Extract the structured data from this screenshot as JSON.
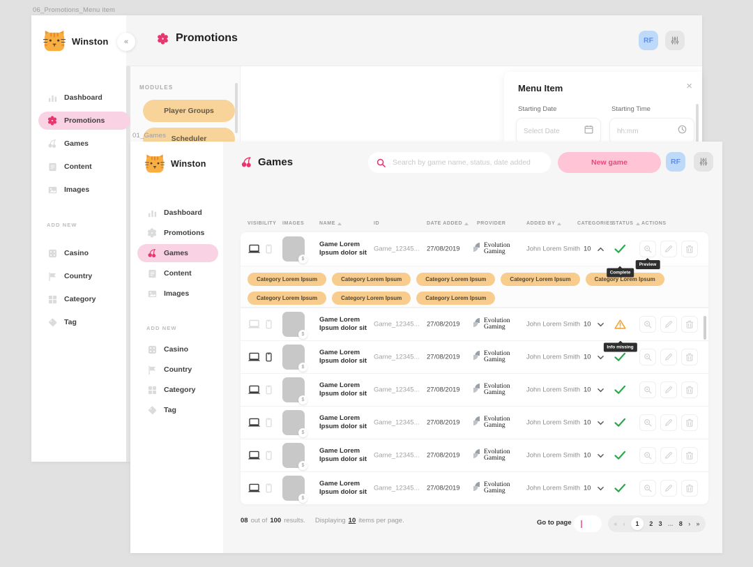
{
  "frames": {
    "promotions": {
      "window_label": "06_Promotions_Menu item",
      "brand": "Winston",
      "page_title": "Promotions",
      "avatar_initials": "RF",
      "sidebar": {
        "items": [
          {
            "label": "Dashboard",
            "icon": "dashboard",
            "active": false
          },
          {
            "label": "Promotions",
            "icon": "promotions",
            "active": true
          },
          {
            "label": "Games",
            "icon": "games",
            "active": false
          },
          {
            "label": "Content",
            "icon": "content",
            "active": false
          },
          {
            "label": "Images",
            "icon": "images",
            "active": false
          }
        ],
        "section_label": "ADD NEW",
        "add_new_items": [
          {
            "label": "Casino",
            "icon": "casino"
          },
          {
            "label": "Country",
            "icon": "country"
          },
          {
            "label": "Category",
            "icon": "category"
          },
          {
            "label": "Tag",
            "icon": "tag"
          }
        ]
      },
      "modules_panel": {
        "heading": "MODULES",
        "buttons": [
          "Player Groups",
          "Scheduler"
        ]
      },
      "menu_item_panel": {
        "title": "Menu Item",
        "fields": [
          {
            "label": "Starting Date",
            "placeholder": "Select Date",
            "icon": "calendar"
          },
          {
            "label": "Starting Time",
            "placeholder": "hh:mm",
            "icon": "clock"
          }
        ]
      }
    },
    "games": {
      "window_label": "01_Games",
      "brand": "Winston",
      "page_title": "Games",
      "search_placeholder": "Search by game name, status, date added",
      "new_game_button": "New game",
      "avatar_initials": "RF",
      "sidebar": {
        "items": [
          {
            "label": "Dashboard",
            "icon": "dashboard",
            "active": false
          },
          {
            "label": "Promotions",
            "icon": "promotions",
            "active": false
          },
          {
            "label": "Games",
            "icon": "games",
            "active": true
          },
          {
            "label": "Content",
            "icon": "content",
            "active": false
          },
          {
            "label": "Images",
            "icon": "images",
            "active": false
          }
        ],
        "section_label": "ADD NEW",
        "add_new_items": [
          {
            "label": "Casino",
            "icon": "casino"
          },
          {
            "label": "Country",
            "icon": "country"
          },
          {
            "label": "Category",
            "icon": "category"
          },
          {
            "label": "Tag",
            "icon": "tag"
          }
        ]
      },
      "table": {
        "columns": [
          {
            "label": "VISIBILITY",
            "sorted": false
          },
          {
            "label": "IMAGES",
            "sorted": false
          },
          {
            "label": "NAME",
            "sorted": true
          },
          {
            "label": "ID",
            "sorted": false
          },
          {
            "label": "DATE ADDED",
            "sorted": true
          },
          {
            "label": "PROVIDER",
            "sorted": false
          },
          {
            "label": "ADDED BY",
            "sorted": true
          },
          {
            "label": "CATEGORIES",
            "sorted": false
          },
          {
            "label": "STATUS",
            "sorted": true
          },
          {
            "label": "ACTIONS",
            "sorted": false
          }
        ],
        "rows": [
          {
            "name_line1": "Game Lorem",
            "name_line2": "Ipsum dolor sit",
            "id": "Game_12345...",
            "date_added": "27/08/2019",
            "provider_line1": "Evolution",
            "provider_line2": "Gaming",
            "added_by": "John Lorem Smith",
            "categories_count": "10",
            "expanded": true,
            "status": "complete",
            "status_tooltip": "Complete",
            "action_tooltip": "Preview",
            "visibility": {
              "desktop": true,
              "mobile": false
            }
          },
          {
            "name_line1": "Game Lorem",
            "name_line2": "Ipsum dolor sit",
            "id": "Game_12345...",
            "date_added": "27/08/2019",
            "provider_line1": "Evolution",
            "provider_line2": "Gaming",
            "added_by": "John Lorem Smith",
            "categories_count": "10",
            "expanded": false,
            "status": "warning",
            "status_tooltip": "Info missing",
            "visibility": {
              "desktop": false,
              "mobile": false
            }
          },
          {
            "name_line1": "Game Lorem",
            "name_line2": "Ipsum dolor sit",
            "id": "Game_12345...",
            "date_added": "27/08/2019",
            "provider_line1": "Evolution",
            "provider_line2": "Gaming",
            "added_by": "John Lorem Smith",
            "categories_count": "10",
            "expanded": false,
            "status": "complete",
            "visibility": {
              "desktop": true,
              "mobile": true
            }
          },
          {
            "name_line1": "Game Lorem",
            "name_line2": "Ipsum dolor sit",
            "id": "Game_12345...",
            "date_added": "27/08/2019",
            "provider_line1": "Evolution",
            "provider_line2": "Gaming",
            "added_by": "John Lorem Smith",
            "categories_count": "10",
            "expanded": false,
            "status": "complete",
            "visibility": {
              "desktop": true,
              "mobile": false
            }
          },
          {
            "name_line1": "Game Lorem",
            "name_line2": "Ipsum dolor sit",
            "id": "Game_12345...",
            "date_added": "27/08/2019",
            "provider_line1": "Evolution",
            "provider_line2": "Gaming",
            "added_by": "John Lorem Smith",
            "categories_count": "10",
            "expanded": false,
            "status": "complete",
            "visibility": {
              "desktop": true,
              "mobile": false
            }
          },
          {
            "name_line1": "Game Lorem",
            "name_line2": "Ipsum dolor sit",
            "id": "Game_12345...",
            "date_added": "27/08/2019",
            "provider_line1": "Evolution",
            "provider_line2": "Gaming",
            "added_by": "John Lorem Smith",
            "categories_count": "10",
            "expanded": false,
            "status": "complete",
            "visibility": {
              "desktop": true,
              "mobile": false
            }
          },
          {
            "name_line1": "Game Lorem",
            "name_line2": "Ipsum dolor sit",
            "id": "Game_12345...",
            "date_added": "27/08/2019",
            "provider_line1": "Evolution",
            "provider_line2": "Gaming",
            "added_by": "John Lorem Smith",
            "categories_count": "10",
            "expanded": false,
            "status": "complete",
            "visibility": {
              "desktop": true,
              "mobile": false
            }
          }
        ],
        "expanded_categories": [
          "Category Lorem Ipsum",
          "Category Lorem Ipsum",
          "Category Lorem Ipsum",
          "Category Lorem Ipsum",
          "Category Lorem Ipsum",
          "Category Lorem Ipsum",
          "Category Lorem Ipsum",
          "Category Lorem Ipsum"
        ],
        "image_badge": "$"
      },
      "footer": {
        "count": "08",
        "out_of_label": "out of",
        "total": "100",
        "results_label": "results.",
        "displaying_label": "Displaying",
        "items_per_page": "10",
        "items_label": "items per page.",
        "goto_label": "Go to page",
        "pagination": [
          {
            "label": "«",
            "state": "disabled"
          },
          {
            "label": "‹",
            "state": "disabled"
          },
          {
            "label": "1",
            "state": "current"
          },
          {
            "label": "2",
            "state": "normal"
          },
          {
            "label": "3",
            "state": "normal"
          },
          {
            "label": "...",
            "state": "ellipsis"
          },
          {
            "label": "8",
            "state": "normal"
          },
          {
            "label": "›",
            "state": "nav"
          },
          {
            "label": "»",
            "state": "nav"
          }
        ]
      }
    }
  },
  "colors": {
    "accent_pink": "#E8356D",
    "active_pill": "#F9D3E3",
    "new_game_bg": "#FFC4D6",
    "orange_pill": "#F7CC8D",
    "module_btn": "#F8D49A",
    "status_green": "#29A84B",
    "status_orange": "#F2A33A",
    "avatar_bg": "#BFD9F9",
    "tooltip_bg": "#2E2E2E"
  }
}
